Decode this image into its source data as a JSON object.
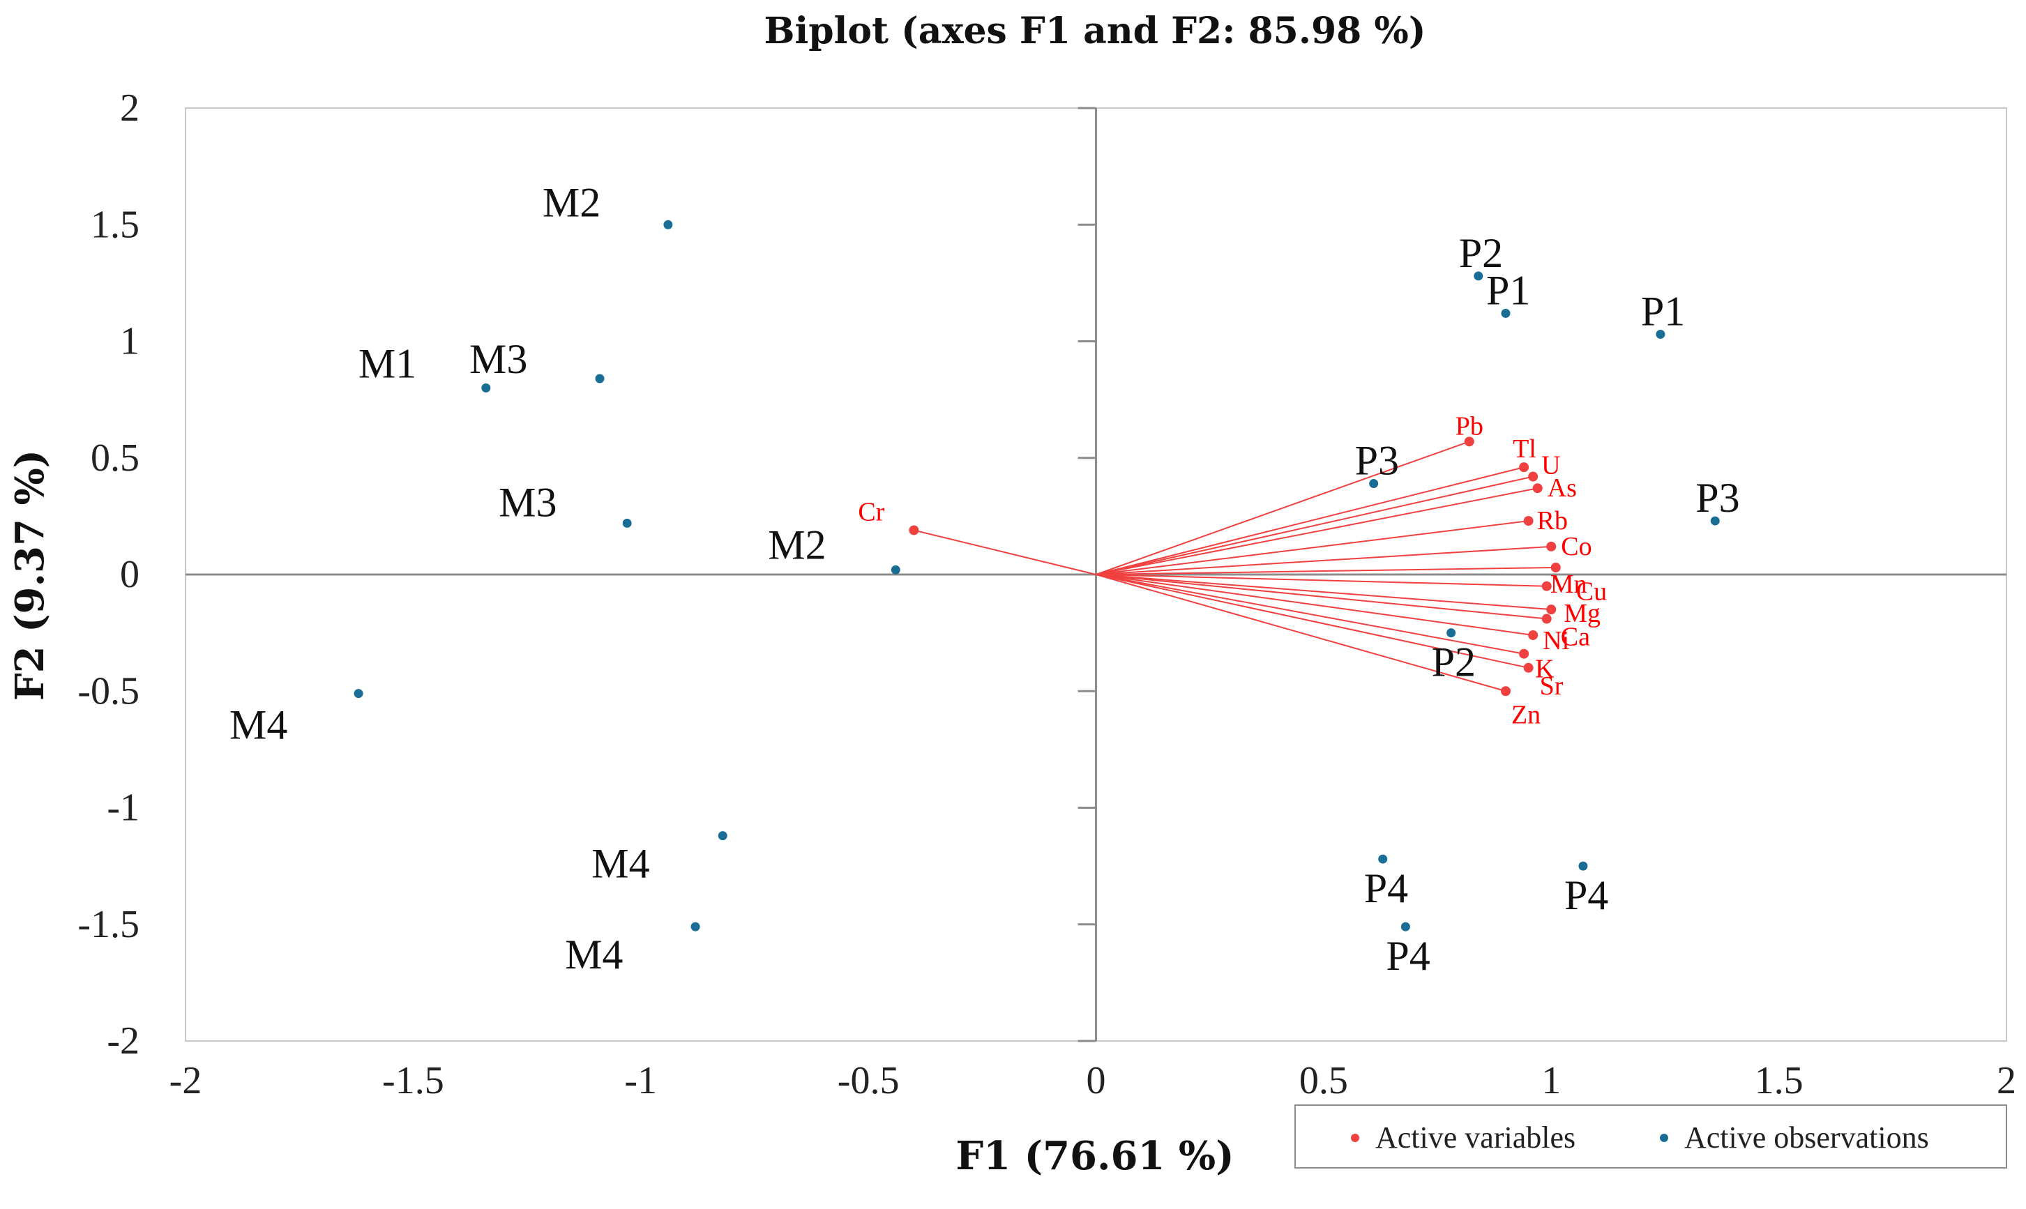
{
  "chart_data": {
    "type": "scatter",
    "subtype": "biplot",
    "title": "Biplot (axes F1 and F2: 85.98 %)",
    "xlabel": "F1 (76.61 %)",
    "ylabel": "F2 (9.37 %)",
    "xlim": [
      -2,
      2
    ],
    "ylim": [
      -2,
      2
    ],
    "x_ticks": [
      "-2",
      "-1.5",
      "-1",
      "-0.5",
      "0",
      "0.5",
      "1",
      "1.5",
      "2"
    ],
    "y_ticks": [
      "2",
      "1.5",
      "1",
      "0.5",
      "0",
      "-0.5",
      "-1",
      "-1.5",
      "-2"
    ],
    "legend": {
      "placement": "bottom-right",
      "variables": "Active variables",
      "observations": "Active observations"
    },
    "colors": {
      "variables": "#f04040",
      "variable_labels": "#ff0000",
      "observations": "#1a6e96",
      "axes": "#8c8c8c"
    },
    "variables": [
      {
        "name": "Cr",
        "x": -0.4,
        "y": 0.19
      },
      {
        "name": "Pb",
        "x": 0.82,
        "y": 0.57
      },
      {
        "name": "Tl",
        "x": 0.94,
        "y": 0.46
      },
      {
        "name": "U",
        "x": 0.96,
        "y": 0.42
      },
      {
        "name": "As",
        "x": 0.97,
        "y": 0.37
      },
      {
        "name": "Rb",
        "x": 0.95,
        "y": 0.23
      },
      {
        "name": "Co",
        "x": 1.0,
        "y": 0.12
      },
      {
        "name": "Mn",
        "x": 1.01,
        "y": 0.03
      },
      {
        "name": "Cu",
        "x": 0.99,
        "y": -0.05
      },
      {
        "name": "Mg",
        "x": 1.0,
        "y": -0.15
      },
      {
        "name": "Ca",
        "x": 0.99,
        "y": -0.19
      },
      {
        "name": "Ni",
        "x": 0.96,
        "y": -0.26
      },
      {
        "name": "K",
        "x": 0.94,
        "y": -0.34
      },
      {
        "name": "Sr",
        "x": 0.95,
        "y": -0.4
      },
      {
        "name": "Zn",
        "x": 0.9,
        "y": -0.5
      }
    ],
    "observations": [
      {
        "name": "M2",
        "x": -0.94,
        "y": 1.5
      },
      {
        "name": "M1",
        "x": -1.34,
        "y": 0.8
      },
      {
        "name": "M3",
        "x": -1.09,
        "y": 0.84
      },
      {
        "name": "M3",
        "x": -1.03,
        "y": 0.22
      },
      {
        "name": "M2",
        "x": -0.44,
        "y": 0.02
      },
      {
        "name": "M4",
        "x": -1.62,
        "y": -0.51
      },
      {
        "name": "M4",
        "x": -0.82,
        "y": -1.12
      },
      {
        "name": "M4",
        "x": -0.88,
        "y": -1.51
      },
      {
        "name": "P2",
        "x": 0.84,
        "y": 1.28
      },
      {
        "name": "P1",
        "x": 0.9,
        "y": 1.12
      },
      {
        "name": "P1",
        "x": 1.24,
        "y": 1.03
      },
      {
        "name": "P3",
        "x": 0.61,
        "y": 0.39
      },
      {
        "name": "P3",
        "x": 1.36,
        "y": 0.23
      },
      {
        "name": "P2",
        "x": 0.78,
        "y": -0.25
      },
      {
        "name": "P4",
        "x": 0.63,
        "y": -1.22
      },
      {
        "name": "P4",
        "x": 0.68,
        "y": -1.51
      },
      {
        "name": "P4",
        "x": 1.07,
        "y": -1.25
      }
    ]
  }
}
